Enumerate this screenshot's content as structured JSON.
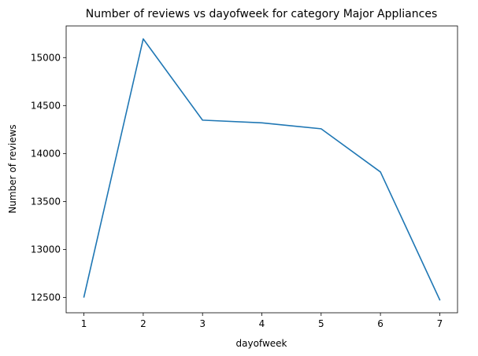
{
  "chart_data": {
    "type": "line",
    "title": "Number of reviews vs dayofweek for category Major Appliances",
    "xlabel": "dayofweek",
    "ylabel": "Number of reviews",
    "x": [
      1,
      2,
      3,
      4,
      5,
      6,
      7
    ],
    "series": [
      {
        "values": [
          12505,
          15195,
          14348,
          14320,
          14258,
          13808,
          12475
        ]
      }
    ],
    "xlim": [
      0.7,
      7.3
    ],
    "ylim": [
      12340,
      15330
    ],
    "xticks": [
      1,
      2,
      3,
      4,
      5,
      6,
      7
    ],
    "xtick_labels": [
      "1",
      "2",
      "3",
      "4",
      "5",
      "6",
      "7"
    ],
    "yticks": [
      12500,
      13000,
      13500,
      14000,
      14500,
      15000
    ],
    "ytick_labels": [
      "12500",
      "13000",
      "13500",
      "14000",
      "14500",
      "15000"
    ],
    "grid": false,
    "line_color": "#1f77b4"
  }
}
